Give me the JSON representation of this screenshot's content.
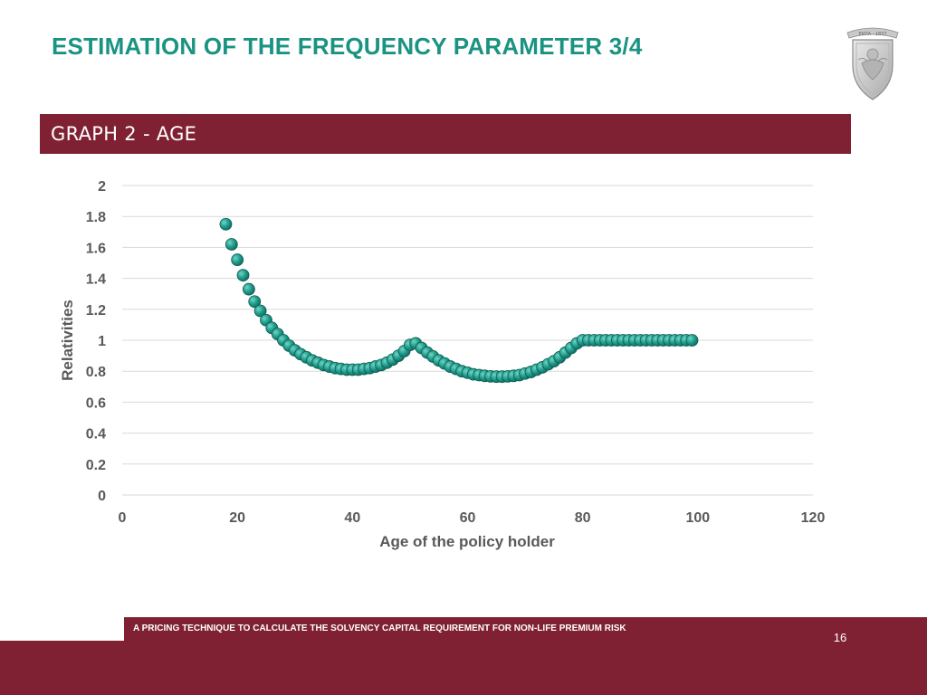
{
  "slide": {
    "title": "ESTIMATION OF THE FREQUENCY PARAMETER 3/4",
    "section_label": "GRAPH 2 - AGE",
    "footer_text": "A PRICING TECHNIQUE TO CALCULATE THE SOLVENCY CAPITAL REQUIREMENT FOR NON-LIFE PREMIUM RISK",
    "page_number": "16",
    "logo_ribbon_text": "ΕΚΠΑ · 1837"
  },
  "colors": {
    "title": "#1a9382",
    "brand": "#7f2132",
    "marker": "#1f9a8a",
    "marker_edge": "#0d5e54",
    "gridline": "#d9d9d9",
    "axis_text": "#595959"
  },
  "icons": {
    "logo": "university-crest-icon"
  },
  "chart_data": {
    "type": "scatter",
    "title": "",
    "xlabel": "Age of the policy holder",
    "ylabel": "Relativities",
    "xlim": [
      0,
      120
    ],
    "ylim": [
      0,
      2
    ],
    "x_ticks": [
      "0",
      "20",
      "40",
      "60",
      "80",
      "100",
      "120"
    ],
    "y_ticks": [
      "0",
      "0.2",
      "0.4",
      "0.6",
      "0.8",
      "1",
      "1.2",
      "1.4",
      "1.6",
      "1.8",
      "2"
    ],
    "grid": true,
    "legend": "none",
    "series": [
      {
        "x": [
          18,
          19,
          20,
          21,
          22,
          23,
          24,
          25,
          26,
          27,
          28,
          29,
          30,
          31,
          32,
          33,
          34,
          35,
          36,
          37,
          38,
          39,
          40,
          41,
          42,
          43,
          44,
          45,
          46,
          47,
          48,
          49,
          50,
          51,
          52,
          53,
          54,
          55,
          56,
          57,
          58,
          59,
          60,
          61,
          62,
          63,
          64,
          65,
          66,
          67,
          68,
          69,
          70,
          71,
          72,
          73,
          74,
          75,
          76,
          77,
          78,
          79,
          80,
          81,
          82,
          83,
          84,
          85,
          86,
          87,
          88,
          89,
          90,
          91,
          92,
          93,
          94,
          95,
          96,
          97,
          98,
          99
        ],
        "y": [
          1.75,
          1.62,
          1.52,
          1.42,
          1.33,
          1.25,
          1.19,
          1.13,
          1.08,
          1.04,
          1.0,
          0.965,
          0.935,
          0.91,
          0.89,
          0.87,
          0.855,
          0.84,
          0.83,
          0.82,
          0.815,
          0.81,
          0.81,
          0.81,
          0.815,
          0.82,
          0.83,
          0.84,
          0.855,
          0.875,
          0.9,
          0.93,
          0.97,
          0.98,
          0.95,
          0.92,
          0.895,
          0.87,
          0.85,
          0.83,
          0.815,
          0.8,
          0.79,
          0.78,
          0.775,
          0.77,
          0.767,
          0.765,
          0.765,
          0.767,
          0.77,
          0.775,
          0.785,
          0.795,
          0.81,
          0.825,
          0.845,
          0.865,
          0.89,
          0.92,
          0.95,
          0.98,
          1.0,
          1.0,
          1.0,
          1.0,
          1.0,
          1.0,
          1.0,
          1.0,
          1.0,
          1.0,
          1.0,
          1.0,
          1.0,
          1.0,
          1.0,
          1.0,
          1.0,
          1.0,
          1.0,
          1.0
        ]
      }
    ]
  }
}
